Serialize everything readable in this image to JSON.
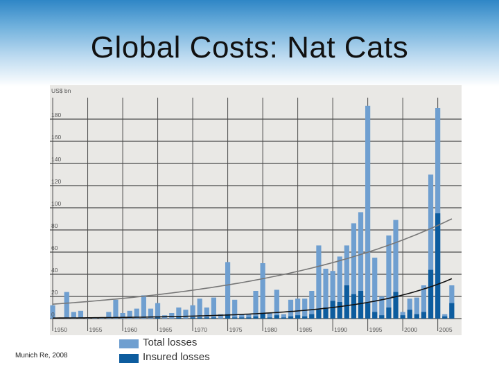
{
  "slide": {
    "title": "Global Costs: Nat Cats",
    "source": "Munich Re, 2008"
  },
  "colors": {
    "total": "#6f9fd0",
    "insured": "#0d5c9e",
    "plot_bg": "#e9e8e5",
    "trend_total": "#777777",
    "trend_insured": "#111111"
  },
  "chart_data": {
    "type": "bar",
    "ylabel": "US$ bn",
    "ylim": [
      0,
      200
    ],
    "y_ticks": [
      0,
      20,
      40,
      60,
      80,
      100,
      120,
      140,
      160,
      180
    ],
    "x_ticks": [
      1950,
      1955,
      1960,
      1965,
      1970,
      1975,
      1980,
      1985,
      1990,
      1995,
      2000,
      2005
    ],
    "grid": true,
    "legend_position": "bottom",
    "x": [
      1950,
      1951,
      1952,
      1953,
      1954,
      1955,
      1956,
      1957,
      1958,
      1959,
      1960,
      1961,
      1962,
      1963,
      1964,
      1965,
      1966,
      1967,
      1968,
      1969,
      1970,
      1971,
      1972,
      1973,
      1974,
      1975,
      1976,
      1977,
      1978,
      1979,
      1980,
      1981,
      1982,
      1983,
      1984,
      1985,
      1986,
      1987,
      1988,
      1989,
      1990,
      1991,
      1992,
      1993,
      1994,
      1995,
      1996,
      1997,
      1998,
      1999,
      2000,
      2001,
      2002,
      2003,
      2004,
      2005,
      2006,
      2007
    ],
    "series": [
      {
        "name": "Total losses",
        "values": [
          12,
          0,
          24,
          6,
          7,
          1,
          1,
          1,
          6,
          17,
          5,
          7,
          9,
          21,
          9,
          14,
          3,
          5,
          10,
          8,
          12,
          18,
          10,
          19,
          4,
          51,
          17,
          4,
          4,
          25,
          50,
          5,
          26,
          4,
          17,
          18,
          18,
          25,
          66,
          45,
          43,
          56,
          66,
          86,
          96,
          192,
          55,
          20,
          75,
          89,
          6,
          18,
          19,
          30,
          130,
          190,
          4,
          30
        ]
      },
      {
        "name": "Insured losses",
        "values": [
          0,
          0,
          0,
          0,
          0,
          0,
          0,
          0,
          0,
          0,
          0,
          0,
          0,
          0,
          0,
          1,
          0,
          0,
          1,
          0,
          1,
          1,
          1,
          1,
          0,
          4,
          1,
          1,
          1,
          2,
          5,
          1,
          3,
          1,
          2,
          3,
          2,
          4,
          8,
          10,
          16,
          15,
          30,
          22,
          25,
          14,
          6,
          3,
          10,
          24,
          3,
          8,
          4,
          6,
          44,
          95,
          2,
          14
        ]
      }
    ],
    "trend_lines": [
      {
        "series": "Total losses",
        "values": [
          13,
          90
        ]
      },
      {
        "series": "Insured losses",
        "values": [
          0.5,
          36
        ]
      }
    ]
  }
}
